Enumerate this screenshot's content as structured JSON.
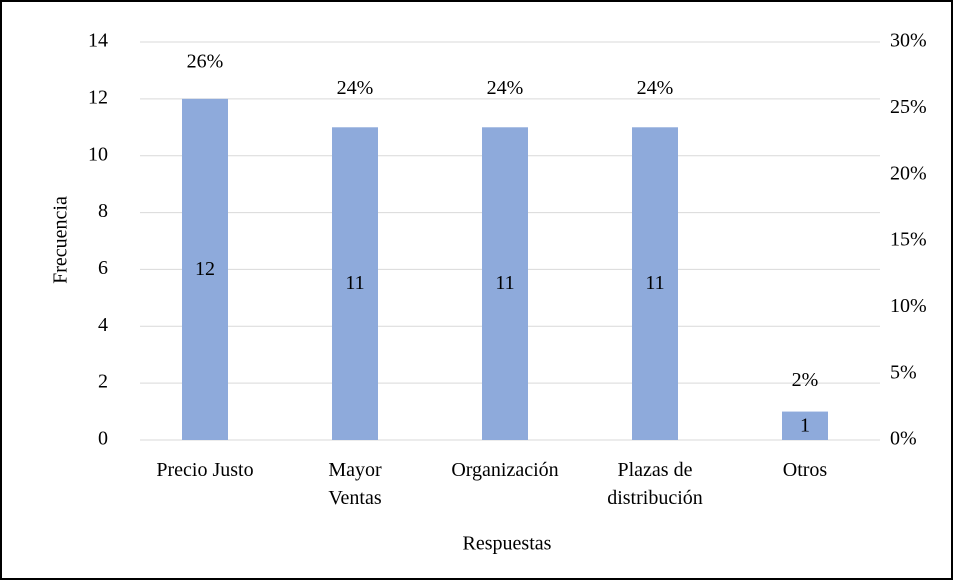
{
  "chart_data": {
    "type": "bar",
    "y_label": "Frecuencia",
    "x_label": "Respuestas",
    "categories": [
      "Precio Justo",
      "Mayor\nVentas",
      "Organización",
      "Plazas de\ndistribución",
      "Otros"
    ],
    "series": [
      {
        "color": "#8eaadb",
        "values": [
          12,
          11,
          11,
          11,
          1
        ]
      },
      {
        "axis": "y2",
        "values": [
          26,
          24,
          24,
          24,
          2
        ],
        "value_labels": [
          "26%",
          "24%",
          "24%",
          "24%",
          "2%"
        ]
      }
    ],
    "ylim": [
      0,
      14
    ],
    "yticks": [
      0,
      2,
      4,
      6,
      8,
      10,
      12,
      14
    ],
    "y2lim": [
      0,
      30
    ],
    "y2ticks": [
      {
        "value": 0,
        "label": "0%"
      },
      {
        "value": 5,
        "label": "5%"
      },
      {
        "value": 10,
        "label": "10%"
      },
      {
        "value": 15,
        "label": "15%"
      },
      {
        "value": 20,
        "label": "20%"
      },
      {
        "value": 25,
        "label": "25%"
      },
      {
        "value": 30,
        "label": "30%"
      }
    ],
    "grid": true
  }
}
